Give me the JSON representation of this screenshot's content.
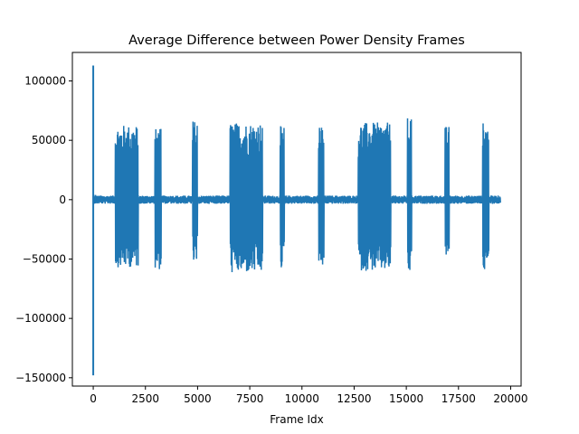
{
  "chart_data": {
    "type": "line",
    "title": "Average Difference between Power Density Frames",
    "xlabel": "Frame Idx",
    "ylabel": "",
    "xlim": [
      -1000,
      20500
    ],
    "ylim": [
      -157000,
      124000
    ],
    "xticks": [
      0,
      2500,
      5000,
      7500,
      10000,
      12500,
      15000,
      17500,
      20000
    ],
    "xtick_labels": [
      "0",
      "2500",
      "5000",
      "7500",
      "10000",
      "12500",
      "15000",
      "17500",
      "20000"
    ],
    "yticks": [
      -150000,
      -100000,
      -50000,
      0,
      50000,
      100000
    ],
    "ytick_labels": [
      "−150000",
      "−100000",
      "−50000",
      "0",
      "50000",
      "100000"
    ],
    "grid": false,
    "color": "#1f77b4",
    "baseline_noise": 3500,
    "x_end": 19500,
    "spikes": [
      {
        "x": 0,
        "max": 113000,
        "min": -148000
      },
      {
        "x": 100,
        "max": 4000,
        "min": -3000
      }
    ],
    "bursts": [
      {
        "x_start": 1050,
        "x_end": 2150,
        "max": 63000,
        "min": -57000
      },
      {
        "x_start": 2950,
        "x_end": 3250,
        "max": 60000,
        "min": -59000
      },
      {
        "x_start": 4750,
        "x_end": 4980,
        "max": 67000,
        "min": -55000
      },
      {
        "x_start": 6550,
        "x_end": 8100,
        "max": 65000,
        "min": -62000
      },
      {
        "x_start": 8950,
        "x_end": 9150,
        "max": 62000,
        "min": -58000
      },
      {
        "x_start": 10800,
        "x_end": 11050,
        "max": 64000,
        "min": -58000
      },
      {
        "x_start": 12700,
        "x_end": 14250,
        "max": 65000,
        "min": -60000
      },
      {
        "x_start": 15050,
        "x_end": 15250,
        "max": 70000,
        "min": -63000
      },
      {
        "x_start": 16850,
        "x_end": 17050,
        "max": 62000,
        "min": -50000
      },
      {
        "x_start": 18650,
        "x_end": 18950,
        "max": 65000,
        "min": -62000
      }
    ]
  }
}
